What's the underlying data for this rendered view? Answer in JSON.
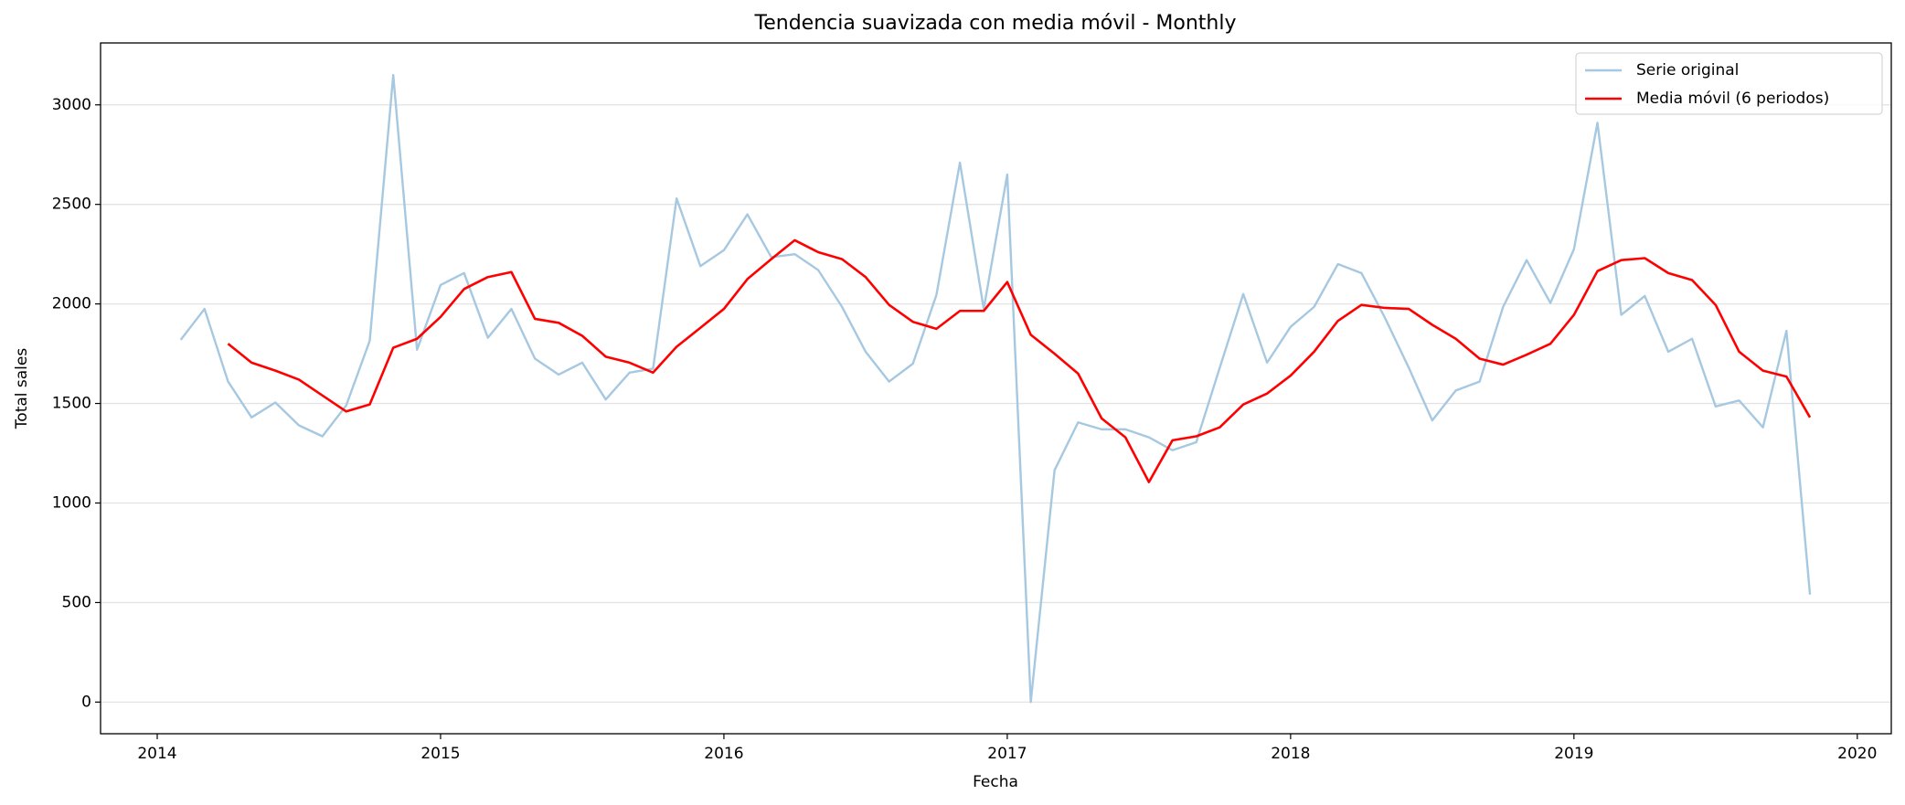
{
  "chart_data": {
    "type": "line",
    "title": "Tendencia suavizada con media móvil - Monthly",
    "x_label": "Fecha",
    "y_label": "Total sales",
    "x": [
      2014.083,
      2014.167,
      2014.25,
      2014.333,
      2014.417,
      2014.5,
      2014.583,
      2014.667,
      2014.75,
      2014.833,
      2014.917,
      2015.0,
      2015.083,
      2015.167,
      2015.25,
      2015.333,
      2015.417,
      2015.5,
      2015.583,
      2015.667,
      2015.75,
      2015.833,
      2015.917,
      2016.0,
      2016.083,
      2016.167,
      2016.25,
      2016.333,
      2016.417,
      2016.5,
      2016.583,
      2016.667,
      2016.75,
      2016.833,
      2016.917,
      2017.0,
      2017.083,
      2017.167,
      2017.25,
      2017.333,
      2017.417,
      2017.5,
      2017.583,
      2017.667,
      2017.75,
      2017.833,
      2017.917,
      2018.0,
      2018.083,
      2018.167,
      2018.25,
      2018.333,
      2018.417,
      2018.5,
      2018.583,
      2018.667,
      2018.75,
      2018.833,
      2018.917,
      2019.0,
      2019.083,
      2019.167,
      2019.25,
      2019.333,
      2019.417,
      2019.5,
      2019.583,
      2019.667,
      2019.75,
      2019.833
    ],
    "series": [
      {
        "name": "Serie original",
        "color": "#a6c8e0",
        "values": [
          1820,
          1975,
          1610,
          1430,
          1505,
          1390,
          1335,
          1490,
          1815,
          3150,
          1770,
          2095,
          2155,
          1830,
          1975,
          1725,
          1645,
          1705,
          1520,
          1655,
          1675,
          2530,
          2190,
          2270,
          2450,
          2235,
          2250,
          2170,
          1985,
          1760,
          1610,
          1700,
          2045,
          2710,
          1975,
          2650,
          0,
          1165,
          1405,
          1370,
          1370,
          1330,
          1265,
          1305,
          1680,
          2050,
          1705,
          1885,
          1985,
          2200,
          2155,
          1930,
          1680,
          1415,
          1565,
          1610,
          1985,
          2220,
          2005,
          2275,
          2910,
          1945,
          2040,
          1760,
          1825,
          1485,
          1515,
          1380,
          1865,
          540
        ]
      },
      {
        "name": "Media móvil (6 periodos)",
        "color": "#ff0000",
        "values": [
          null,
          null,
          1800,
          1705,
          1665,
          1620,
          1540,
          1460,
          1495,
          1780,
          1825,
          1935,
          2075,
          2135,
          2160,
          1925,
          1905,
          1840,
          1735,
          1705,
          1655,
          1785,
          1880,
          1975,
          2125,
          2225,
          2320,
          2260,
          2225,
          2135,
          1995,
          1910,
          1875,
          1965,
          1965,
          2110,
          1845,
          1750,
          1650,
          1425,
          1330,
          1105,
          1315,
          1335,
          1380,
          1495,
          1550,
          1640,
          1760,
          1915,
          1995,
          1980,
          1975,
          1895,
          1825,
          1725,
          1695,
          1745,
          1800,
          1945,
          2165,
          2220,
          2230,
          2155,
          2120,
          1995,
          1760,
          1665,
          1635,
          1430
        ]
      }
    ],
    "xlim": [
      2013.8,
      2020.12
    ],
    "xticks": [
      2014,
      2015,
      2016,
      2017,
      2018,
      2019,
      2020
    ],
    "ylim": [
      -159,
      3311
    ],
    "yticks": [
      0,
      500,
      1000,
      1500,
      2000,
      2500,
      3000
    ],
    "grid": "y",
    "legend": "upper right"
  }
}
